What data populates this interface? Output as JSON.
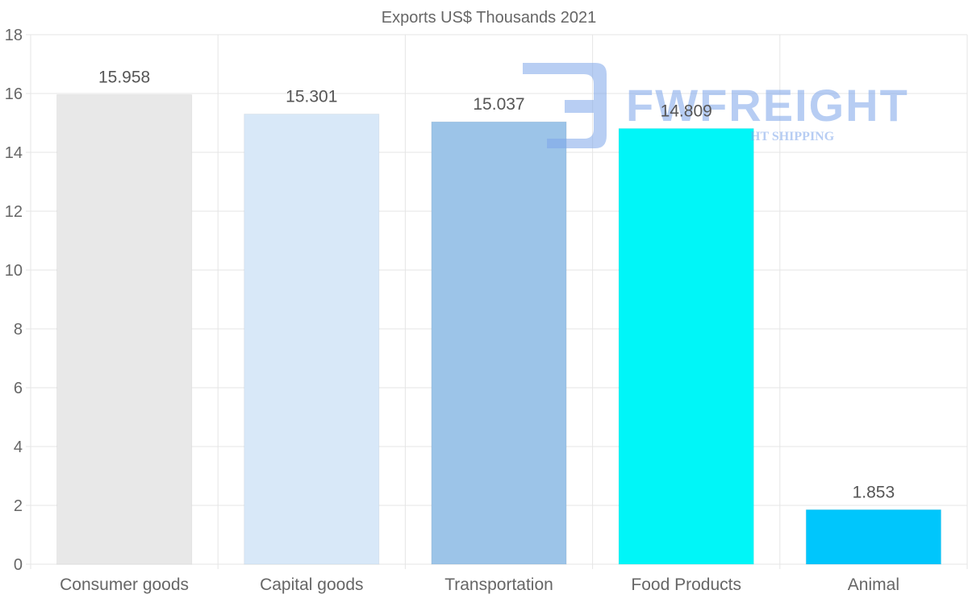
{
  "chart_data": {
    "type": "bar",
    "title": "Exports US$ Thousands 2021",
    "categories": [
      "Consumer goods",
      "Capital goods",
      "Transportation",
      "Food Products",
      "Animal"
    ],
    "values": [
      15.958,
      15.301,
      15.037,
      14.809,
      1.853
    ],
    "data_labels": [
      "15.958",
      "15.301",
      "15.037",
      "14.809",
      "1.853"
    ],
    "colors": [
      "#e8e8e8",
      "#d8e8f8",
      "#9cc4e8",
      "#00f6f8",
      "#00c6fc"
    ],
    "ylim": [
      0,
      18
    ],
    "yticks": [
      0,
      2,
      4,
      6,
      8,
      10,
      12,
      14,
      16,
      18
    ],
    "xlabel": "",
    "ylabel": "",
    "grid": true,
    "legend": "none"
  },
  "watermark": {
    "text": "FWFREIGHT",
    "subtext": "HT SHIPPING",
    "color": "#7ea6ea"
  }
}
